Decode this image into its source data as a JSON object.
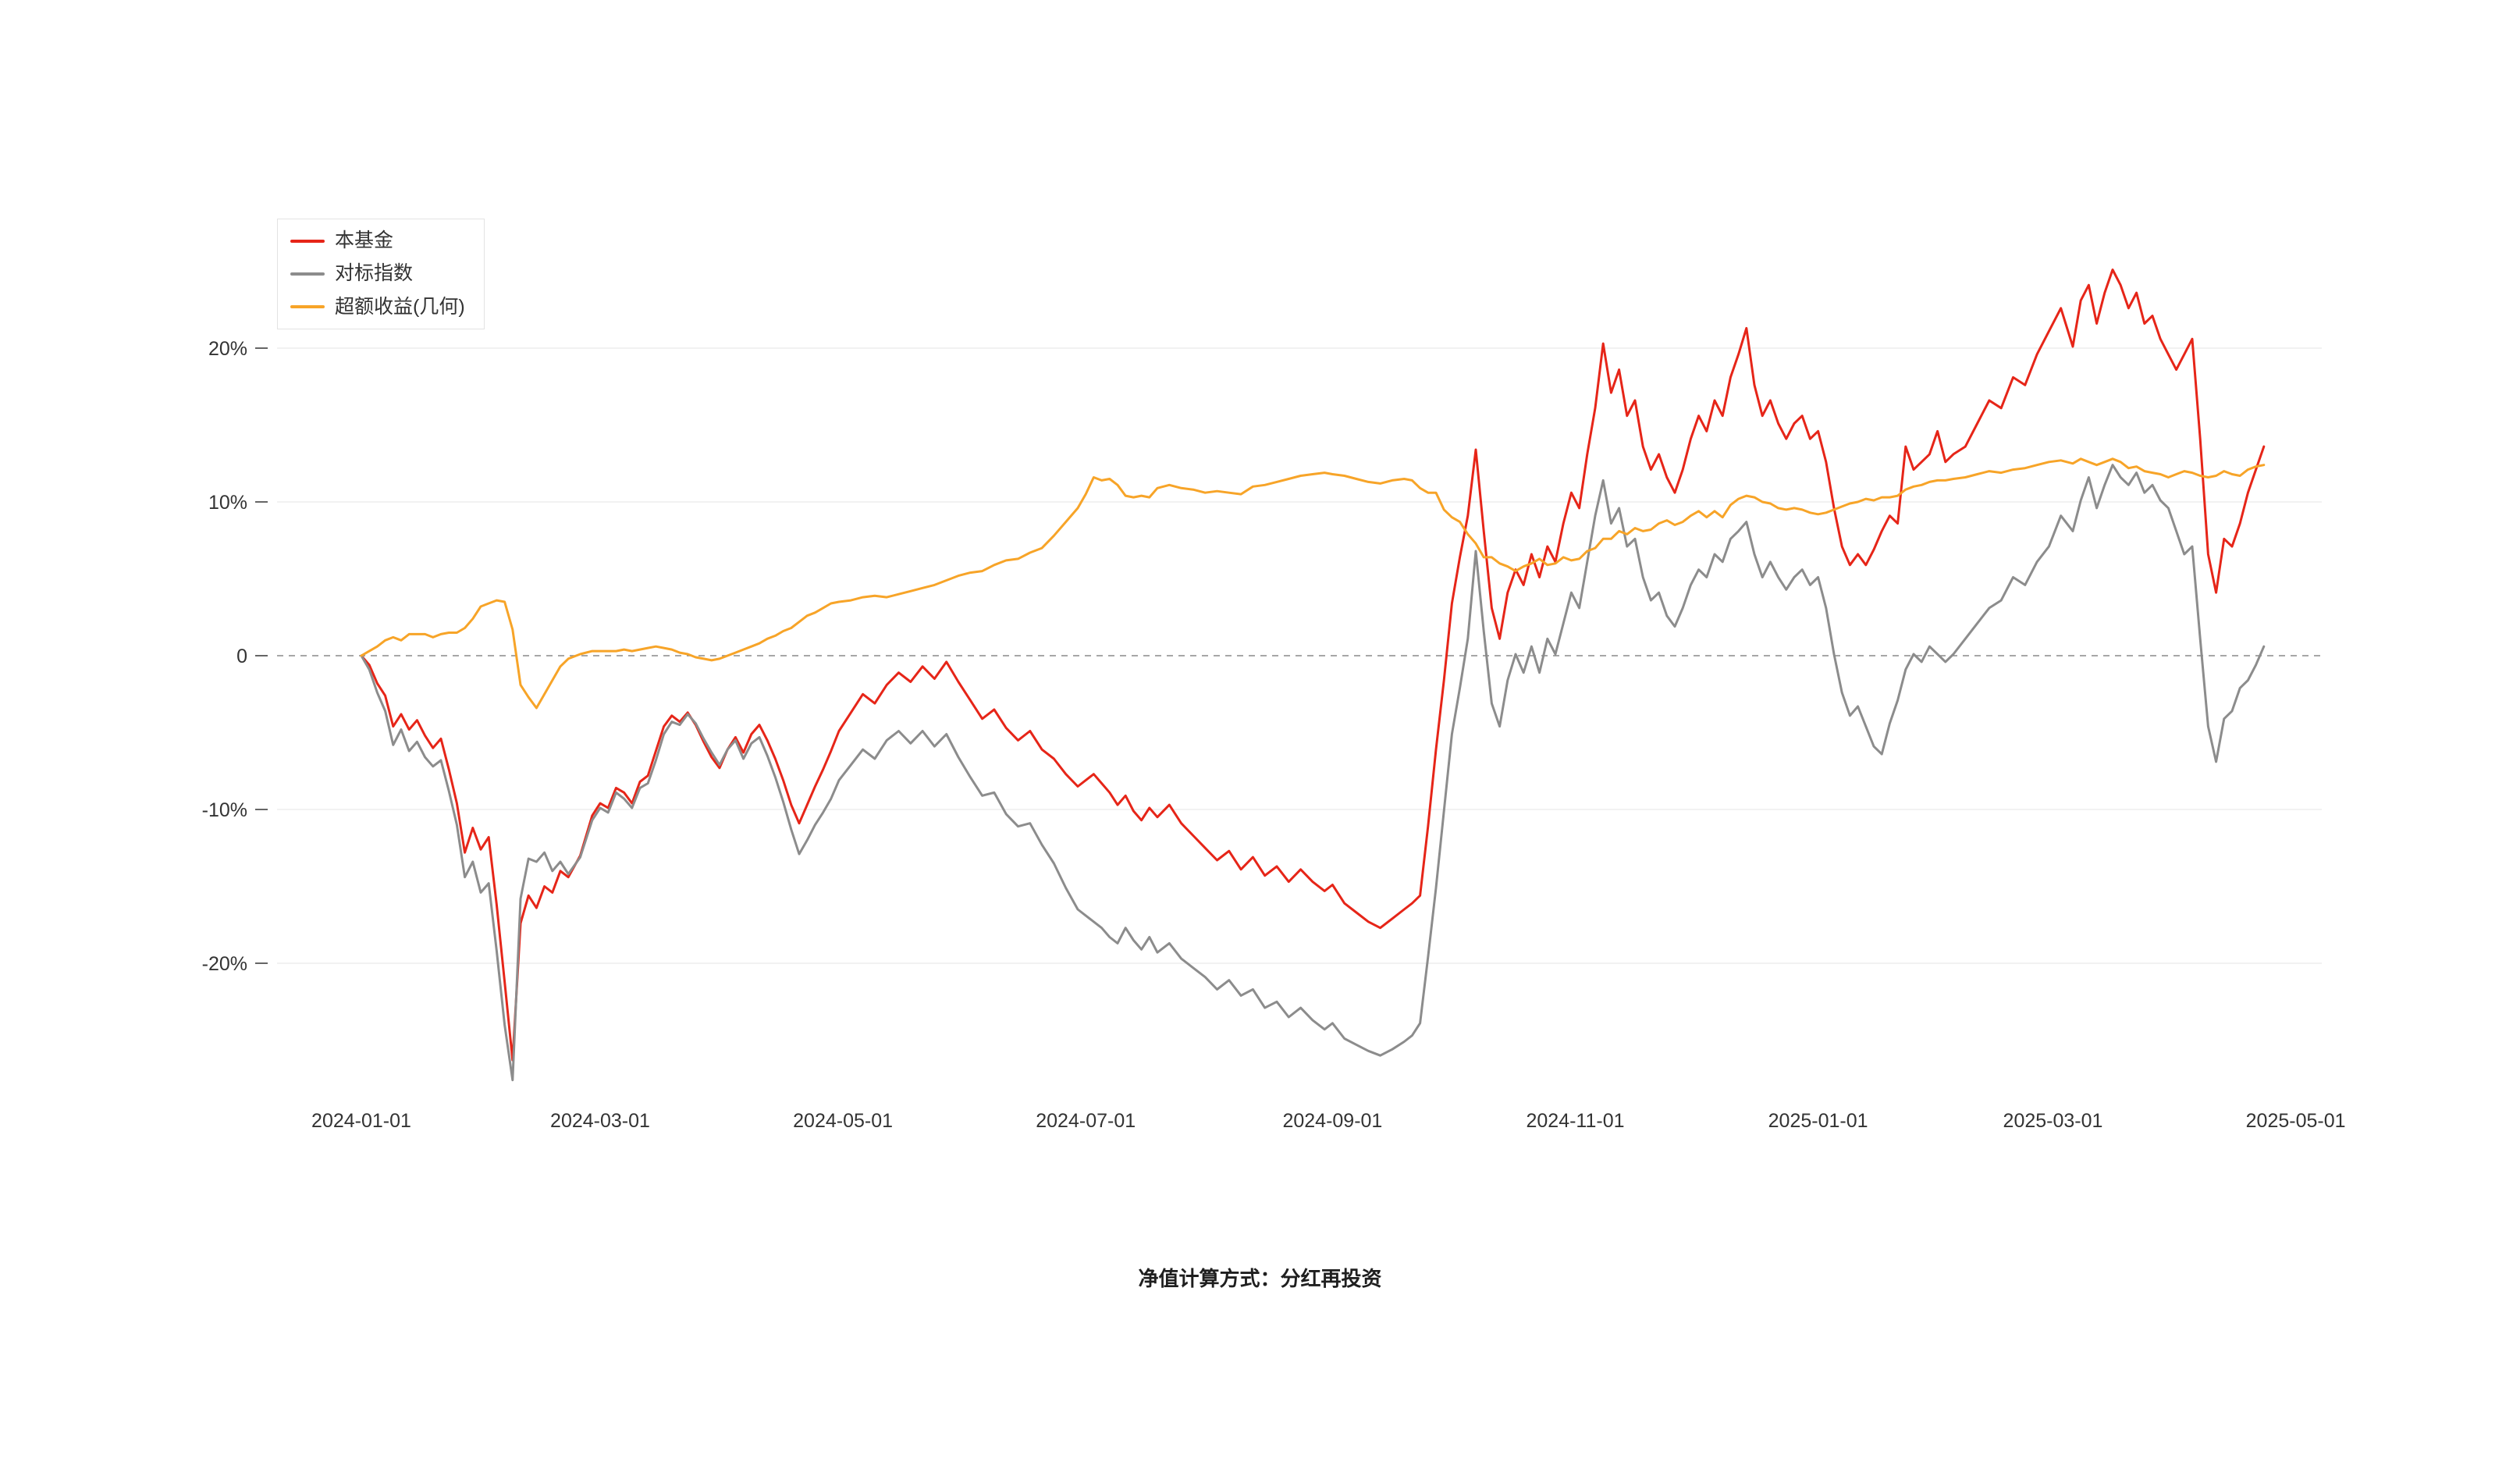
{
  "footer": {
    "note": "净值计算方式：分红再投资"
  },
  "chart_data": {
    "type": "line",
    "title": "",
    "xlabel": "",
    "ylabel": "",
    "legend_position": "top-left",
    "grid": "horizontal-light",
    "zero_line": "dashed",
    "x_unit": "days_since_2024-01-01",
    "xlim": [
      0,
      486
    ],
    "ylim": [
      -29,
      27
    ],
    "x_ticks": [
      {
        "day": 0,
        "label": "2024-01-01"
      },
      {
        "day": 60,
        "label": "2024-03-01"
      },
      {
        "day": 121,
        "label": "2024-05-01"
      },
      {
        "day": 182,
        "label": "2024-07-01"
      },
      {
        "day": 244,
        "label": "2024-09-01"
      },
      {
        "day": 305,
        "label": "2024-11-01"
      },
      {
        "day": 366,
        "label": "2025-01-01"
      },
      {
        "day": 425,
        "label": "2025-03-01"
      },
      {
        "day": 486,
        "label": "2025-05-01"
      }
    ],
    "y_ticks": [
      {
        "value": 20,
        "label": "20%"
      },
      {
        "value": 10,
        "label": "10%"
      },
      {
        "value": 0,
        "label": "0"
      },
      {
        "value": -10,
        "label": "-10%"
      },
      {
        "value": -20,
        "label": "-20%"
      }
    ],
    "days": [
      0,
      2,
      4,
      6,
      8,
      10,
      12,
      14,
      16,
      18,
      20,
      22,
      24,
      26,
      28,
      30,
      32,
      34,
      36,
      38,
      40,
      42,
      44,
      46,
      48,
      50,
      52,
      55,
      58,
      60,
      62,
      64,
      66,
      68,
      70,
      72,
      74,
      76,
      78,
      80,
      82,
      84,
      86,
      88,
      90,
      92,
      94,
      96,
      98,
      100,
      102,
      104,
      106,
      108,
      110,
      112,
      114,
      116,
      118,
      120,
      123,
      126,
      129,
      132,
      135,
      138,
      141,
      144,
      147,
      150,
      153,
      156,
      159,
      162,
      165,
      168,
      171,
      174,
      177,
      180,
      182,
      184,
      186,
      188,
      190,
      192,
      194,
      196,
      198,
      200,
      203,
      206,
      209,
      212,
      215,
      218,
      221,
      224,
      227,
      230,
      233,
      236,
      239,
      242,
      244,
      247,
      250,
      253,
      256,
      259,
      262,
      264,
      266,
      268,
      270,
      272,
      274,
      276,
      278,
      280,
      282,
      284,
      286,
      288,
      290,
      292,
      294,
      296,
      298,
      300,
      302,
      304,
      306,
      308,
      310,
      312,
      314,
      316,
      318,
      320,
      322,
      324,
      326,
      328,
      330,
      332,
      334,
      336,
      338,
      340,
      342,
      344,
      346,
      348,
      350,
      352,
      354,
      356,
      358,
      360,
      362,
      364,
      366,
      368,
      370,
      372,
      374,
      376,
      378,
      380,
      382,
      384,
      386,
      388,
      390,
      392,
      394,
      396,
      398,
      400,
      403,
      406,
      409,
      412,
      415,
      418,
      421,
      424,
      427,
      430,
      432,
      434,
      436,
      438,
      440,
      442,
      444,
      446,
      448,
      450,
      452,
      454,
      456,
      458,
      460,
      462,
      464,
      466,
      468,
      470,
      472,
      474,
      476,
      478
    ],
    "series": [
      {
        "key": "fund",
        "name": "本基金",
        "color": "#e62518",
        "values": [
          0,
          -0.6,
          -1.8,
          -2.6,
          -4.6,
          -3.8,
          -4.8,
          -4.2,
          -5.2,
          -6,
          -5.4,
          -7.4,
          -9.6,
          -12.8,
          -11.2,
          -12.6,
          -11.8,
          -16.2,
          -21.2,
          -26.3,
          -17.4,
          -15.6,
          -16.4,
          -15,
          -15.4,
          -14,
          -14.4,
          -13,
          -10.4,
          -9.6,
          -9.9,
          -8.6,
          -8.9,
          -9.6,
          -8.2,
          -7.8,
          -6.2,
          -4.6,
          -3.9,
          -4.3,
          -3.7,
          -4.5,
          -5.6,
          -6.6,
          -7.3,
          -6.1,
          -5.3,
          -6.3,
          -5.1,
          -4.5,
          -5.5,
          -6.7,
          -8.1,
          -9.7,
          -10.9,
          -9.7,
          -8.5,
          -7.4,
          -6.2,
          -4.9,
          -3.7,
          -2.5,
          -3.1,
          -1.9,
          -1.1,
          -1.7,
          -0.7,
          -1.5,
          -0.4,
          -1.7,
          -2.9,
          -4.1,
          -3.5,
          -4.7,
          -5.5,
          -4.9,
          -6.1,
          -6.7,
          -7.7,
          -8.5,
          -8.1,
          -7.7,
          -8.3,
          -8.9,
          -9.7,
          -9.1,
          -10.1,
          -10.7,
          -9.9,
          -10.5,
          -9.7,
          -10.9,
          -11.7,
          -12.5,
          -13.3,
          -12.7,
          -13.9,
          -13.1,
          -14.3,
          -13.7,
          -14.7,
          -13.9,
          -14.7,
          -15.3,
          -14.9,
          -16.1,
          -16.7,
          -17.3,
          -17.7,
          -17.1,
          -16.5,
          -16.1,
          -15.6,
          -11.1,
          -6.1,
          -1.6,
          3.4,
          6.4,
          9.1,
          13.4,
          8.1,
          3.1,
          1.1,
          4.1,
          5.6,
          4.6,
          6.6,
          5.1,
          7.1,
          6.1,
          8.6,
          10.6,
          9.6,
          13.1,
          16.1,
          20.3,
          17.1,
          18.6,
          15.6,
          16.6,
          13.6,
          12.1,
          13.1,
          11.6,
          10.6,
          12.1,
          14.1,
          15.6,
          14.6,
          16.6,
          15.6,
          18.1,
          19.6,
          21.3,
          17.6,
          15.6,
          16.6,
          15.1,
          14.1,
          15.1,
          15.6,
          14.1,
          14.6,
          12.6,
          9.6,
          7.1,
          5.9,
          6.6,
          5.9,
          6.9,
          8.1,
          9.1,
          8.6,
          13.6,
          12.1,
          12.6,
          13.1,
          14.6,
          12.6,
          13.1,
          13.6,
          15.1,
          16.6,
          16.1,
          18.1,
          17.6,
          19.6,
          21.1,
          22.6,
          20.1,
          23.1,
          24.1,
          21.6,
          23.6,
          25.1,
          24.1,
          22.6,
          23.6,
          21.6,
          22.1,
          20.6,
          19.6,
          18.6,
          19.6,
          20.6,
          14.1,
          6.6,
          4.1,
          7.6,
          7.1,
          8.6,
          10.6,
          12.1,
          13.6
        ]
      },
      {
        "key": "benchmark",
        "name": "对标指数",
        "color": "#8c8c8c",
        "values": [
          0,
          -0.9,
          -2.4,
          -3.6,
          -5.8,
          -4.8,
          -6.2,
          -5.6,
          -6.6,
          -7.2,
          -6.8,
          -8.8,
          -11,
          -14.4,
          -13.4,
          -15.4,
          -14.8,
          -19.2,
          -24,
          -27.6,
          -15.8,
          -13.2,
          -13.4,
          -12.8,
          -14,
          -13.4,
          -14.2,
          -13.1,
          -10.7,
          -9.9,
          -10.2,
          -8.9,
          -9.3,
          -9.9,
          -8.6,
          -8.3,
          -6.8,
          -5.1,
          -4.3,
          -4.5,
          -3.8,
          -4.4,
          -5.4,
          -6.3,
          -7.1,
          -6.1,
          -5.5,
          -6.7,
          -5.7,
          -5.3,
          -6.5,
          -7.9,
          -9.5,
          -11.3,
          -12.9,
          -12,
          -11,
          -10.2,
          -9.3,
          -8.1,
          -7.1,
          -6.1,
          -6.7,
          -5.5,
          -4.9,
          -5.7,
          -4.9,
          -5.9,
          -5.1,
          -6.6,
          -7.9,
          -9.1,
          -8.9,
          -10.3,
          -11.1,
          -10.9,
          -12.3,
          -13.5,
          -15.1,
          -16.5,
          -16.9,
          -17.3,
          -17.7,
          -18.3,
          -18.7,
          -17.7,
          -18.5,
          -19.1,
          -18.3,
          -19.3,
          -18.7,
          -19.7,
          -20.3,
          -20.9,
          -21.7,
          -21.1,
          -22.1,
          -21.7,
          -22.9,
          -22.5,
          -23.5,
          -22.9,
          -23.7,
          -24.3,
          -23.9,
          -24.9,
          -25.3,
          -25.7,
          -26,
          -25.6,
          -25.1,
          -24.7,
          -23.9,
          -19.6,
          -15.1,
          -10.1,
          -5.1,
          -2.1,
          1.1,
          6.8,
          1.6,
          -3.1,
          -4.6,
          -1.6,
          0.1,
          -1.1,
          0.6,
          -1.1,
          1.1,
          0.1,
          2.1,
          4.1,
          3.1,
          6.1,
          9.1,
          11.4,
          8.6,
          9.6,
          7.1,
          7.6,
          5.1,
          3.6,
          4.1,
          2.6,
          1.9,
          3.1,
          4.6,
          5.6,
          5.1,
          6.6,
          6.1,
          7.6,
          8.1,
          8.7,
          6.6,
          5.1,
          6.1,
          5.1,
          4.3,
          5.1,
          5.6,
          4.6,
          5.1,
          3.1,
          0.1,
          -2.4,
          -3.9,
          -3.3,
          -4.6,
          -5.9,
          -6.4,
          -4.4,
          -2.9,
          -0.9,
          0.1,
          -0.4,
          0.6,
          0.1,
          -0.4,
          0.1,
          1.1,
          2.1,
          3.1,
          3.6,
          5.1,
          4.6,
          6.1,
          7.1,
          9.1,
          8.1,
          10.1,
          11.6,
          9.6,
          11.1,
          12.4,
          11.6,
          11.1,
          11.9,
          10.6,
          11.1,
          10.1,
          9.6,
          8.1,
          6.6,
          7.1,
          1.1,
          -4.6,
          -6.9,
          -4.1,
          -3.6,
          -2.1,
          -1.6,
          -0.6,
          0.6
        ]
      },
      {
        "key": "excess",
        "name": "超额收益(几何)",
        "color": "#f7a428",
        "values": [
          0,
          0.3,
          0.6,
          1,
          1.2,
          1,
          1.4,
          1.4,
          1.4,
          1.2,
          1.4,
          1.5,
          1.5,
          1.8,
          2.4,
          3.2,
          3.4,
          3.6,
          3.5,
          1.7,
          -1.9,
          -2.7,
          -3.4,
          -2.5,
          -1.6,
          -0.7,
          -0.2,
          0.1,
          0.3,
          0.3,
          0.3,
          0.3,
          0.4,
          0.3,
          0.4,
          0.5,
          0.6,
          0.5,
          0.4,
          0.2,
          0.1,
          -0.1,
          -0.2,
          -0.3,
          -0.2,
          0,
          0.2,
          0.4,
          0.6,
          0.8,
          1.1,
          1.3,
          1.6,
          1.8,
          2.2,
          2.6,
          2.8,
          3.1,
          3.4,
          3.5,
          3.6,
          3.8,
          3.9,
          3.8,
          4,
          4.2,
          4.4,
          4.6,
          4.9,
          5.2,
          5.4,
          5.5,
          5.9,
          6.2,
          6.3,
          6.7,
          7,
          7.8,
          8.7,
          9.6,
          10.5,
          11.6,
          11.4,
          11.5,
          11.1,
          10.4,
          10.3,
          10.4,
          10.3,
          10.9,
          11.1,
          10.9,
          10.8,
          10.6,
          10.7,
          10.6,
          10.5,
          11,
          11.1,
          11.3,
          11.5,
          11.7,
          11.8,
          11.9,
          11.8,
          11.7,
          11.5,
          11.3,
          11.2,
          11.4,
          11.5,
          11.4,
          10.9,
          10.6,
          10.6,
          9.5,
          9,
          8.7,
          7.9,
          7.3,
          6.4,
          6.4,
          6,
          5.8,
          5.5,
          5.8,
          6,
          6.3,
          5.9,
          6,
          6.4,
          6.2,
          6.3,
          6.8,
          7,
          7.6,
          7.6,
          8.1,
          7.9,
          8.3,
          8.1,
          8.2,
          8.6,
          8.8,
          8.5,
          8.7,
          9.1,
          9.4,
          9,
          9.4,
          9,
          9.8,
          10.2,
          10.4,
          10.3,
          10,
          9.9,
          9.6,
          9.5,
          9.6,
          9.5,
          9.3,
          9.2,
          9.3,
          9.5,
          9.7,
          9.9,
          10,
          10.2,
          10.1,
          10.3,
          10.3,
          10.4,
          10.8,
          11,
          11.1,
          11.3,
          11.4,
          11.4,
          11.5,
          11.6,
          11.8,
          12,
          11.9,
          12.1,
          12.2,
          12.4,
          12.6,
          12.7,
          12.5,
          12.8,
          12.6,
          12.4,
          12.6,
          12.8,
          12.6,
          12.2,
          12.3,
          12,
          11.9,
          11.8,
          11.6,
          11.8,
          12,
          11.9,
          11.7,
          11.6,
          11.7,
          12,
          11.8,
          11.7,
          12.1,
          12.3,
          12.4
        ]
      }
    ]
  }
}
